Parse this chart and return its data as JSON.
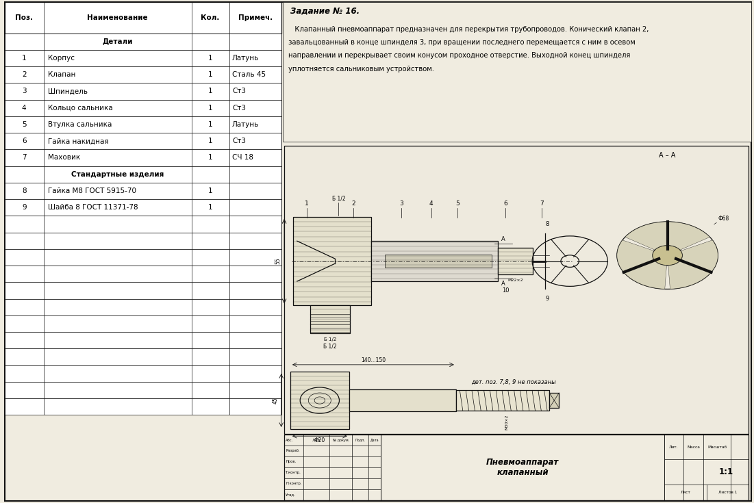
{
  "bg_color": "#f0ece0",
  "border_color": "#111111",
  "title_line1": "Пневмоаппарат",
  "title_line2": "клапанный",
  "scale": "1:1",
  "sheet_label": "Лист",
  "sheets_label": "Листов 1",
  "task_title": "Задание № 16.",
  "task_text_lines": [
    "   Клапанный пневмоаппарат предназначен для перекрытия трубопроводов. Конический клапан 2,",
    "завальцованный в конце шпинделя 3, при вращении последнего перемещается с ним в осевом",
    "направлении и перекрывает своим конусом проходное отверстие. Выходной конец шпинделя",
    "уплотняется сальниковым устройством."
  ],
  "col_headers": [
    "Поз.",
    "Наименование",
    "Кол.",
    "Примеч."
  ],
  "rows": [
    {
      "pos": "",
      "name": "Детали",
      "kol": "",
      "prim": "",
      "bold": true,
      "center_name": true
    },
    {
      "pos": "1",
      "name": "Корпус",
      "kol": "1",
      "prim": "Латунь",
      "bold": false,
      "center_name": false
    },
    {
      "pos": "2",
      "name": "Клапан",
      "kol": "1",
      "prim": "Сталь 45",
      "bold": false,
      "center_name": false
    },
    {
      "pos": "3",
      "name": "Шпиндель",
      "kol": "1",
      "prim": "Ст3",
      "bold": false,
      "center_name": false
    },
    {
      "pos": "4",
      "name": "Кольцо сальника",
      "kol": "1",
      "prim": "Ст3",
      "bold": false,
      "center_name": false
    },
    {
      "pos": "5",
      "name": "Втулка сальника",
      "kol": "1",
      "prim": "Латунь",
      "bold": false,
      "center_name": false
    },
    {
      "pos": "6",
      "name": "Гайка накидная",
      "kol": "1",
      "prim": "Ст3",
      "bold": false,
      "center_name": false
    },
    {
      "pos": "7",
      "name": "Маховик",
      "kol": "1",
      "prim": "СЧ 18",
      "bold": false,
      "center_name": false
    },
    {
      "pos": "",
      "name": "Стандартные изделия",
      "kol": "",
      "prim": "",
      "bold": true,
      "center_name": true
    },
    {
      "pos": "8",
      "name": "Гайка М8 ГОСТ 5915-70",
      "kol": "1",
      "prim": "",
      "bold": false,
      "center_name": false
    },
    {
      "pos": "9",
      "name": "Шайба 8 ГОСТ 11371-78",
      "kol": "1",
      "prim": "",
      "bold": false,
      "center_name": false
    },
    {
      "pos": "",
      "name": "",
      "kol": "",
      "prim": "",
      "bold": false,
      "center_name": false
    },
    {
      "pos": "",
      "name": "",
      "kol": "",
      "prim": "",
      "bold": false,
      "center_name": false
    },
    {
      "pos": "",
      "name": "",
      "kol": "",
      "prim": "",
      "bold": false,
      "center_name": false
    },
    {
      "pos": "",
      "name": "",
      "kol": "",
      "prim": "",
      "bold": false,
      "center_name": false
    },
    {
      "pos": "",
      "name": "",
      "kol": "",
      "prim": "",
      "bold": false,
      "center_name": false
    },
    {
      "pos": "",
      "name": "",
      "kol": "",
      "prim": "",
      "bold": false,
      "center_name": false
    },
    {
      "pos": "",
      "name": "",
      "kol": "",
      "prim": "",
      "bold": false,
      "center_name": false
    },
    {
      "pos": "",
      "name": "",
      "kol": "",
      "prim": "",
      "bold": false,
      "center_name": false
    },
    {
      "pos": "",
      "name": "",
      "kol": "",
      "prim": "",
      "bold": false,
      "center_name": false
    },
    {
      "pos": "",
      "name": "",
      "kol": "",
      "prim": "",
      "bold": false,
      "center_name": false
    },
    {
      "pos": "",
      "name": "",
      "kol": "",
      "prim": "",
      "bold": false,
      "center_name": false
    },
    {
      "pos": "",
      "name": "",
      "kol": "",
      "prim": "",
      "bold": false,
      "center_name": false
    }
  ],
  "drawing_note": "дет. поз. 7,8, 9 не показаны",
  "tb_small_rows": [
    "Абс.",
    "Разраб.",
    "Пров.",
    "Т.контр.",
    "Н.контр.",
    "Утвд."
  ],
  "tb_right_top_labels": [
    "Лит.",
    "Масса",
    "Масштаб"
  ]
}
